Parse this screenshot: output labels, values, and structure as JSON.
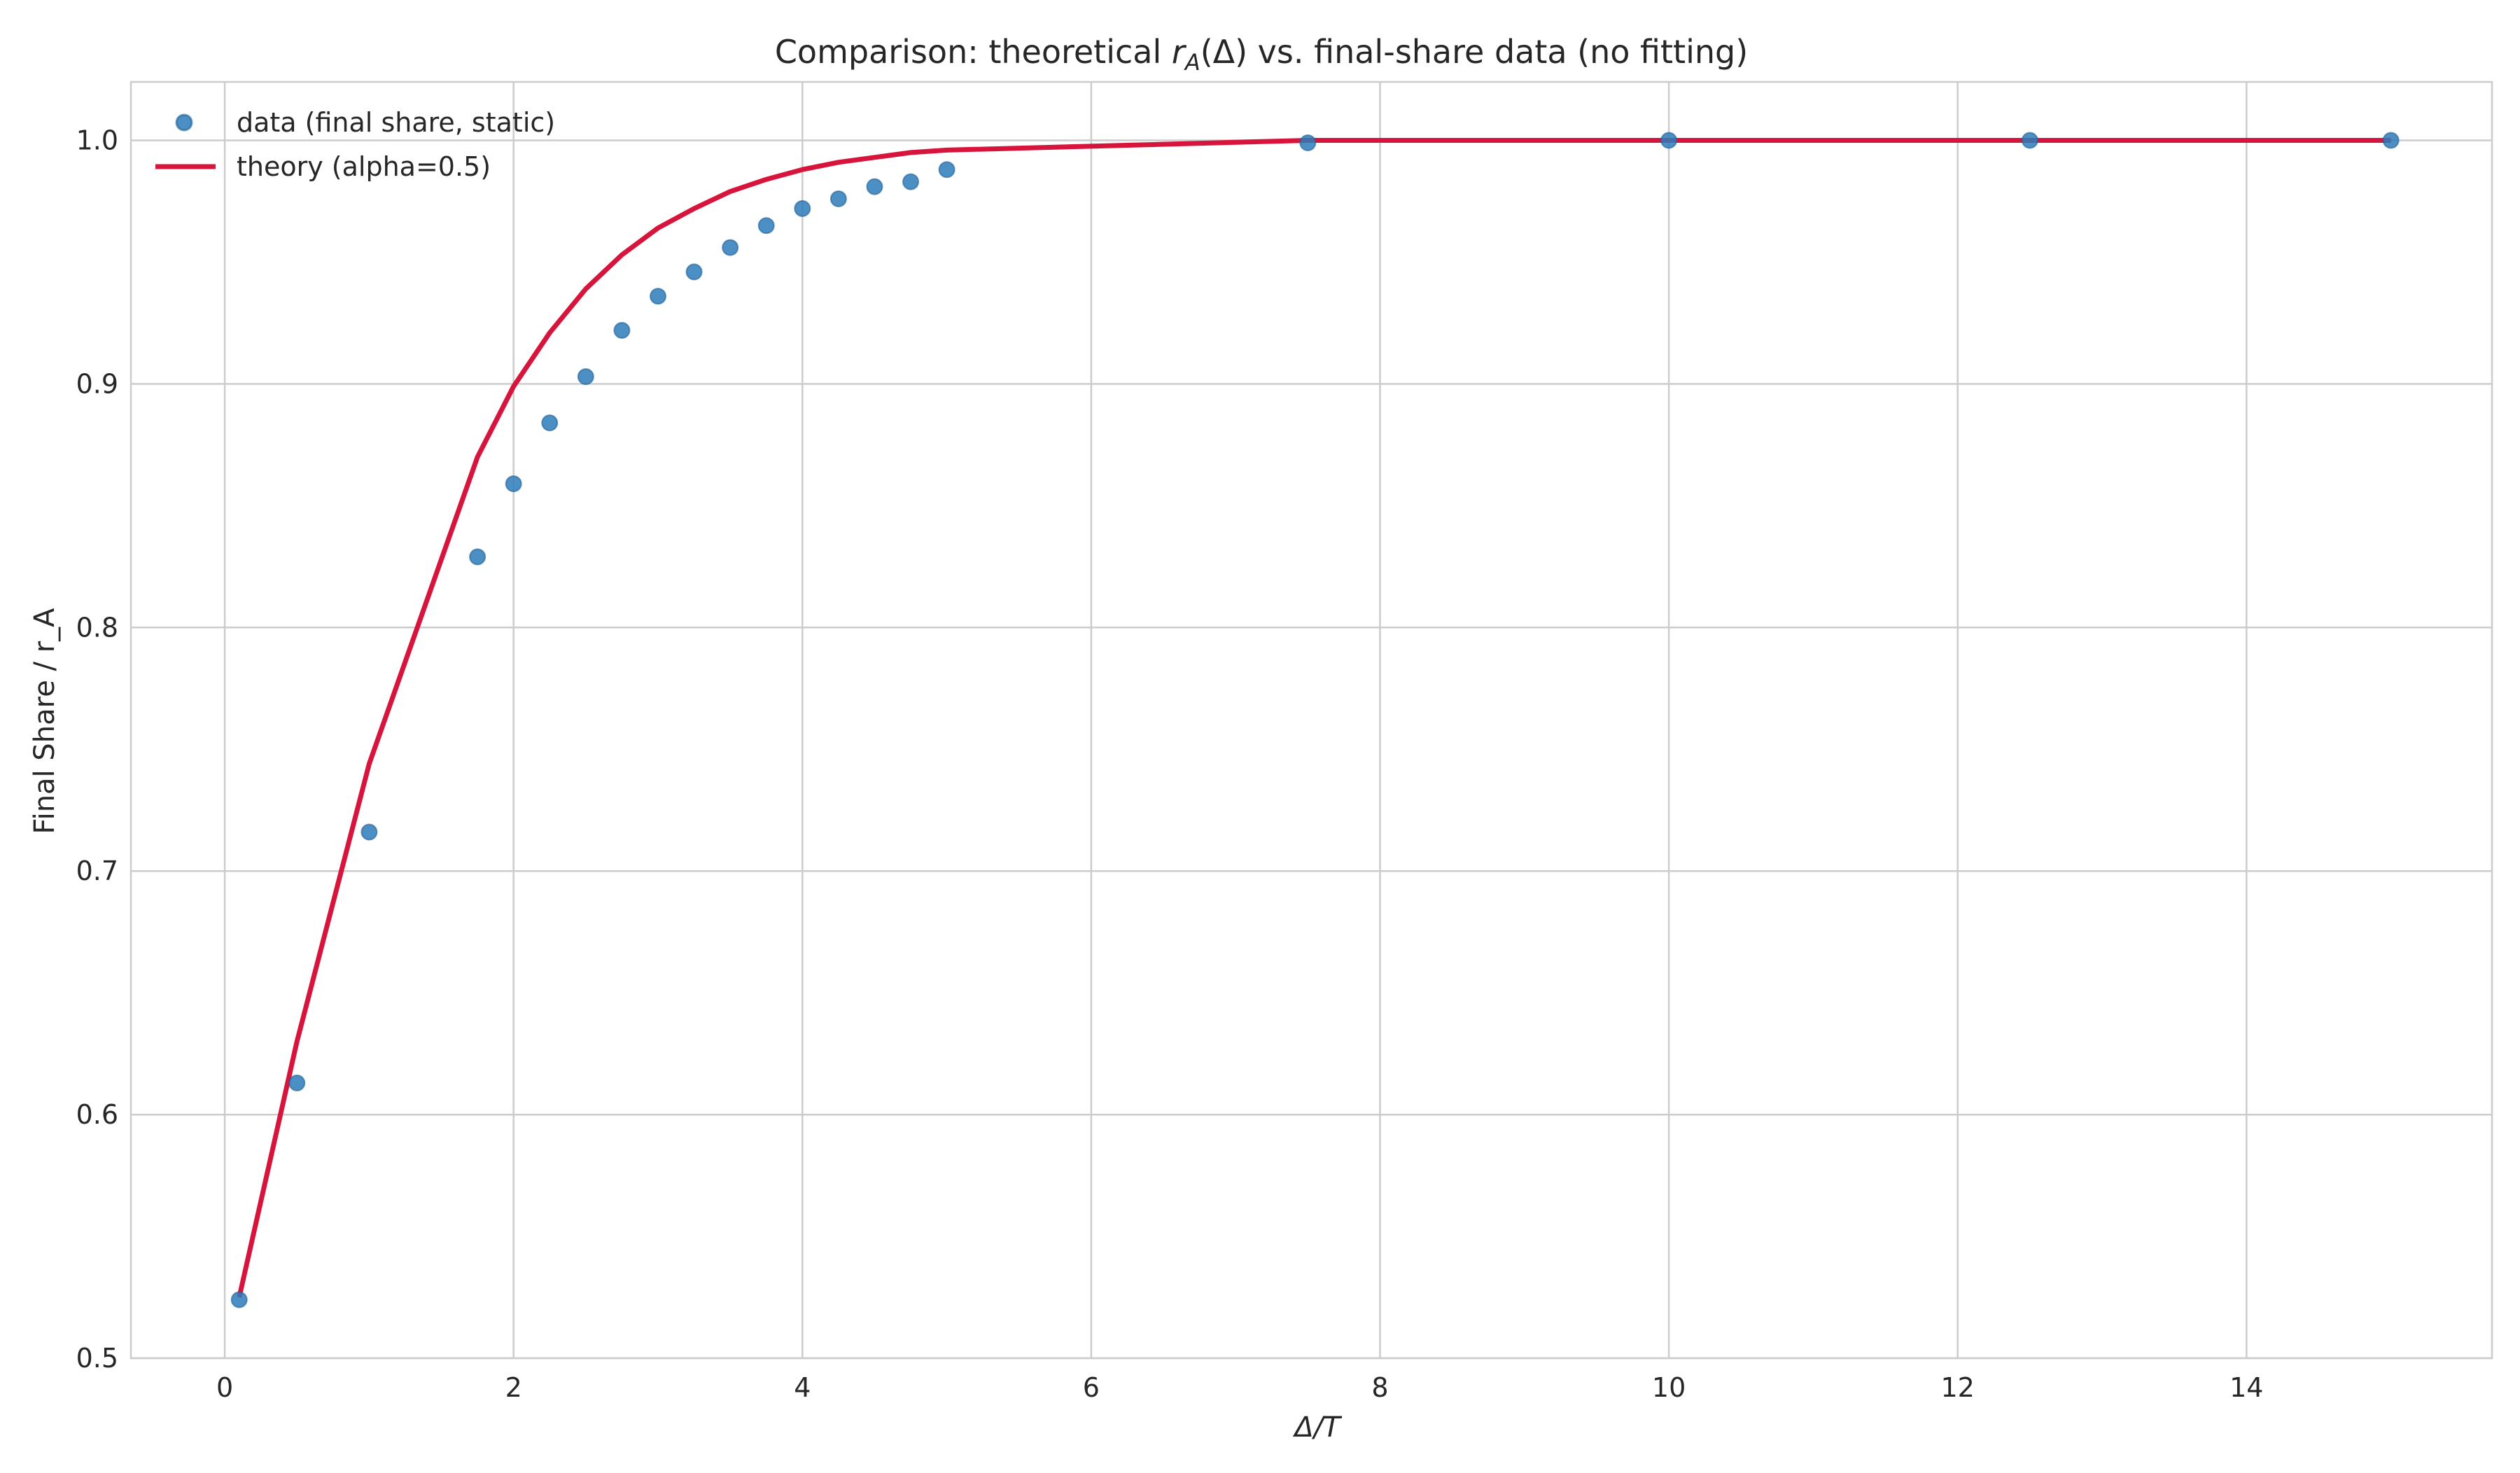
{
  "chart_data": {
    "type": "scatter",
    "title": {
      "prefix": "Comparison: theoretical ",
      "symbol": "r",
      "subscript": "A",
      "suffix": "(Δ) vs. final-share data (no fitting)"
    },
    "xlabel": "Δ/T",
    "ylabel": "Final Share / r_A",
    "xlim": [
      -0.65,
      15.7
    ],
    "ylim": [
      0.5,
      1.024
    ],
    "xticks": [
      0,
      2,
      4,
      6,
      8,
      10,
      12,
      14
    ],
    "yticks": [
      0.5,
      0.6,
      0.7,
      0.8,
      0.9,
      1.0
    ],
    "ytick_labels": [
      "0.5",
      "0.6",
      "0.7",
      "0.8",
      "0.9",
      "1.0"
    ],
    "grid": true,
    "legend_position": "top-left",
    "series": [
      {
        "name": "data (final share, static)",
        "kind": "scatter",
        "color": "#2b7bba",
        "x": [
          0.1,
          0.5,
          1.0,
          1.75,
          2.0,
          2.25,
          2.5,
          2.75,
          3.0,
          3.25,
          3.5,
          3.75,
          4.0,
          4.25,
          4.5,
          4.75,
          5.0,
          7.5,
          10.0,
          12.5,
          15.0
        ],
        "y": [
          0.524,
          0.613,
          0.716,
          0.829,
          0.859,
          0.884,
          0.903,
          0.922,
          0.936,
          0.946,
          0.956,
          0.965,
          0.972,
          0.976,
          0.981,
          0.983,
          0.988,
          0.999,
          1.0,
          1.0,
          1.0
        ]
      },
      {
        "name": "theory (alpha=0.5)",
        "kind": "line",
        "color": "#d6143c",
        "x": [
          0.1,
          0.5,
          1.0,
          1.75,
          2.0,
          2.25,
          2.5,
          2.75,
          3.0,
          3.25,
          3.5,
          3.75,
          4.0,
          4.25,
          4.5,
          4.75,
          5.0,
          7.5,
          10.0,
          12.5,
          15.0
        ],
        "y": [
          0.525,
          0.63,
          0.744,
          0.87,
          0.899,
          0.921,
          0.939,
          0.953,
          0.964,
          0.972,
          0.979,
          0.984,
          0.988,
          0.991,
          0.993,
          0.995,
          0.996,
          1.0,
          1.0,
          1.0,
          1.0
        ]
      }
    ]
  }
}
